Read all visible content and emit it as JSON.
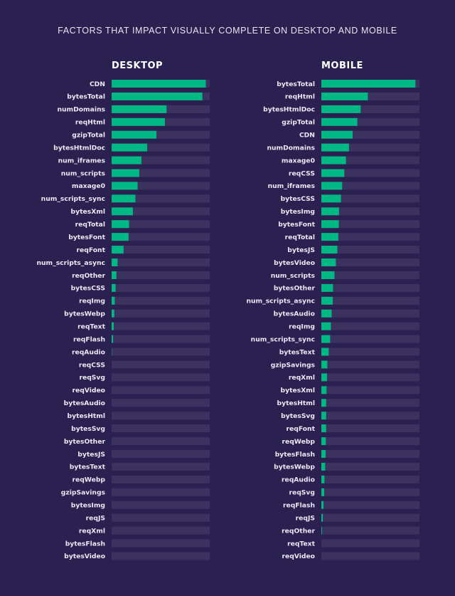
{
  "title": "FACTORS THAT IMPACT VISUALLY COMPLETE ON DESKTOP AND MOBILE",
  "colors": {
    "background": "#2b2150",
    "bar": "#00b884",
    "track": "#3c325f"
  },
  "chart_data": [
    {
      "type": "bar",
      "orientation": "horizontal",
      "title": "DESKTOP",
      "xlim": [
        0,
        100
      ],
      "grid": false,
      "categories": [
        "CDN",
        "bytesTotal",
        "numDomains",
        "reqHtml",
        "gzipTotal",
        "bytesHtmlDoc",
        "num_iframes",
        "num_scripts",
        "maxage0",
        "num_scripts_sync",
        "bytesXml",
        "reqTotal",
        "bytesFont",
        "reqFont",
        "num_scripts_async",
        "reqOther",
        "bytesCSS",
        "reqImg",
        "bytesWebp",
        "reqText",
        "reqFlash",
        "reqAudio",
        "reqCSS",
        "reqSvg",
        "reqVideo",
        "bytesAudio",
        "bytesHtml",
        "bytesSvg",
        "bytesOther",
        "bytesJS",
        "bytesText",
        "reqWebp",
        "gzipSavings",
        "bytesImg",
        "reqJS",
        "reqXml",
        "bytesFlash",
        "bytesVideo"
      ],
      "values": [
        96,
        92.5,
        56,
        54.3,
        45.7,
        36.3,
        30.4,
        28.2,
        26.5,
        24.3,
        21.7,
        17.8,
        17.3,
        12.2,
        6.1,
        4.9,
        4.1,
        3.2,
        2.7,
        2.2,
        1.5,
        0.3,
        0,
        0,
        0,
        0,
        0,
        0,
        0,
        0,
        0,
        0,
        0,
        0,
        0,
        0,
        0,
        0
      ]
    },
    {
      "type": "bar",
      "orientation": "horizontal",
      "title": "MOBILE",
      "xlim": [
        0,
        100
      ],
      "grid": false,
      "categories": [
        "bytesTotal",
        "reqHtml",
        "bytesHtmlDoc",
        "gzipTotal",
        "CDN",
        "numDomains",
        "maxage0",
        "reqCSS",
        "num_iframes",
        "bytesCSS",
        "bytesImg",
        "bytesFont",
        "reqTotal",
        "bytesJS",
        "bytesVideo",
        "num_scripts",
        "bytesOther",
        "num_scripts_async",
        "bytesAudio",
        "reqImg",
        "num_scripts_sync",
        "bytesText",
        "gzipSavings",
        "reqXml",
        "bytesXml",
        "bytesHtml",
        "bytesSvg",
        "reqFont",
        "reqWebp",
        "bytesFlash",
        "bytesWebp",
        "reqAudio",
        "reqSvg",
        "reqFlash",
        "reqJS",
        "reqOther",
        "reqText",
        "reqVideo"
      ],
      "values": [
        95.9,
        47.4,
        40.1,
        36.7,
        31.9,
        28.2,
        25.1,
        23.4,
        21.2,
        20,
        18,
        17.8,
        17.3,
        16.3,
        14.8,
        13.4,
        11.9,
        11.7,
        10.5,
        9.7,
        9,
        7.5,
        6.1,
        5.8,
        5.3,
        4.9,
        4.9,
        4.9,
        4.6,
        4.4,
        3.9,
        3.2,
        2.9,
        2.2,
        1.5,
        0.7,
        0,
        0
      ]
    }
  ]
}
